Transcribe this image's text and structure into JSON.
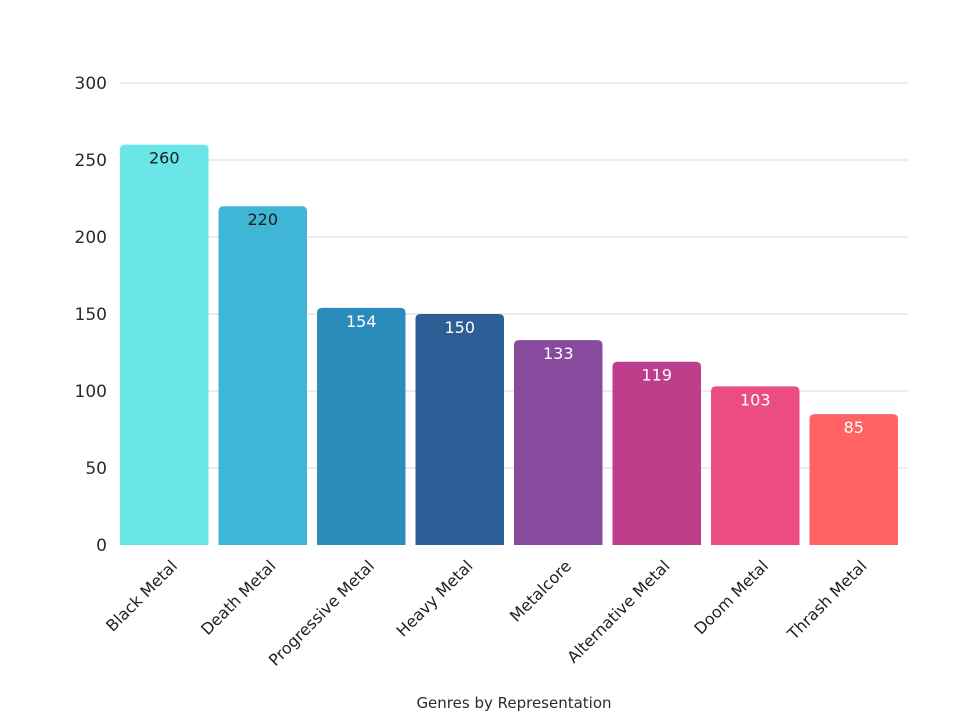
{
  "chart_data": {
    "type": "bar",
    "categories": [
      "Black Metal",
      "Death Metal",
      "Progressive Metal",
      "Heavy Metal",
      "Metalcore",
      "Alternative Metal",
      "Doom Metal",
      "Thrash Metal"
    ],
    "values": [
      260,
      220,
      154,
      150,
      133,
      119,
      103,
      85
    ],
    "colors": [
      "#6be6e8",
      "#3fb6d6",
      "#2b8cbb",
      "#2e5e96",
      "#874b9e",
      "#bd3f8c",
      "#eb4c81",
      "#ff6363"
    ],
    "label_colors": [
      "#1a1a1a",
      "#1a1a1a",
      "#ffffff",
      "#ffffff",
      "#ffffff",
      "#ffffff",
      "#ffffff",
      "#ffffff"
    ],
    "title": "",
    "xlabel": "Genres by Representation",
    "ylabel": "",
    "ylim": [
      0,
      300
    ],
    "yticks": [
      0,
      50,
      100,
      150,
      200,
      250,
      300
    ],
    "grid": true,
    "legend": "none"
  }
}
